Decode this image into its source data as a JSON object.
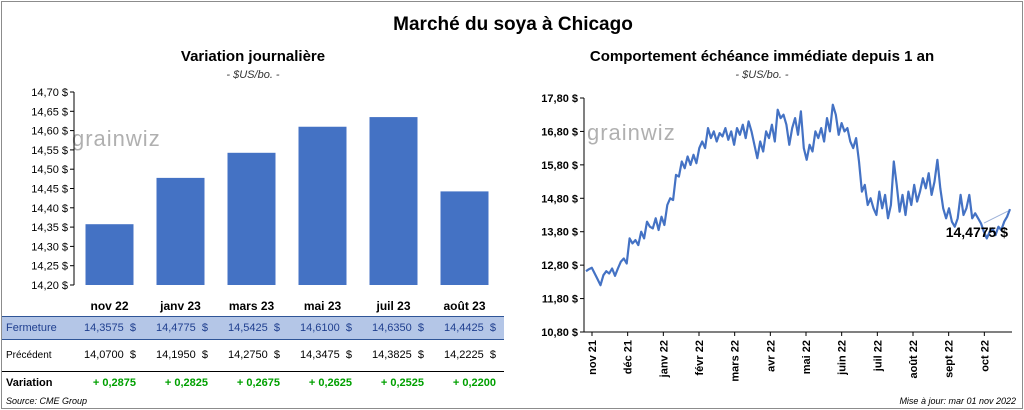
{
  "header": {
    "title": "Marché du soya à Chicago"
  },
  "left_panel": {
    "title": "Variation journalière",
    "unit": "- $US/bo. -",
    "watermark": "grainwiz"
  },
  "right_panel": {
    "title": "Comportement échéance immédiate depuis 1 an",
    "unit": "- $US/bo. -",
    "watermark": "grainwiz",
    "last_value_label": "14,4775 $"
  },
  "table": {
    "rows": [
      {
        "label": "Fermeture",
        "cells": [
          "14,3575  $",
          "14,4775  $",
          "14,5425  $",
          "14,6100  $",
          "14,6350  $",
          "14,4425  $"
        ]
      },
      {
        "label": "Précédent",
        "cells": [
          "14,0700  $",
          "14,1950  $",
          "14,2750  $",
          "14,3475  $",
          "14,3825  $",
          "14,2225  $"
        ]
      },
      {
        "label": "Variation",
        "cells": [
          "+ 0,2875",
          "+ 0,2825",
          "+ 0,2675",
          "+ 0,2625",
          "+ 0,2525",
          "+ 0,2200"
        ]
      }
    ]
  },
  "footer": {
    "source": "Source: CME Group",
    "updated": "Mise à jour: mar 01 nov 2022"
  },
  "chart_data": [
    {
      "type": "bar",
      "title": "Variation journalière",
      "subtitle": "- $US/bo. -",
      "categories": [
        "nov 22",
        "janv 23",
        "mars 23",
        "mai 23",
        "juil 23",
        "août 23"
      ],
      "values": [
        14.3575,
        14.4775,
        14.5425,
        14.61,
        14.635,
        14.4425
      ],
      "ylim": [
        14.2,
        14.7
      ],
      "yticks": [
        14.2,
        14.25,
        14.3,
        14.35,
        14.4,
        14.45,
        14.5,
        14.55,
        14.6,
        14.65,
        14.7
      ],
      "ytick_labels": [
        "14,20 $",
        "14,25 $",
        "14,30 $",
        "14,35 $",
        "14,40 $",
        "14,45 $",
        "14,50 $",
        "14,55 $",
        "14,60 $",
        "14,65 $",
        "14,70 $"
      ],
      "grid": false,
      "color": "#4472c4"
    },
    {
      "type": "line",
      "title": "Comportement échéance immédiate depuis 1 an",
      "subtitle": "- $US/bo. -",
      "x_ticks": [
        "nov 21",
        "déc 21",
        "janv 22",
        "févr 22",
        "mars 22",
        "avr 22",
        "mai 22",
        "juin 22",
        "juil 22",
        "août 22",
        "sept 22",
        "oct 22"
      ],
      "ylim": [
        10.8,
        17.8
      ],
      "yticks": [
        10.8,
        11.8,
        12.8,
        13.8,
        14.8,
        15.8,
        16.8,
        17.8
      ],
      "ytick_labels": [
        "10,80 $",
        "11,80 $",
        "12,80 $",
        "13,80 $",
        "14,80 $",
        "15,80 $",
        "16,80 $",
        "17,80 $"
      ],
      "grid": false,
      "color": "#4472c4",
      "last_value": 14.4775,
      "values": [
        12.62,
        12.68,
        12.72,
        12.55,
        12.38,
        12.2,
        12.5,
        12.62,
        12.55,
        12.7,
        12.48,
        12.7,
        12.9,
        13.0,
        12.85,
        13.6,
        13.45,
        13.55,
        13.4,
        13.8,
        13.6,
        14.1,
        13.95,
        13.9,
        14.2,
        13.85,
        14.25,
        14.0,
        14.6,
        14.8,
        14.75,
        15.5,
        15.45,
        15.9,
        15.7,
        16.05,
        15.8,
        16.1,
        15.85,
        16.3,
        16.5,
        16.3,
        16.9,
        16.6,
        16.8,
        16.5,
        16.75,
        16.65,
        16.9,
        16.55,
        16.8,
        16.4,
        16.9,
        16.7,
        17.0,
        16.6,
        17.1,
        16.8,
        16.4,
        16.0,
        16.5,
        16.2,
        16.8,
        16.6,
        17.0,
        16.5,
        17.45,
        17.2,
        17.3,
        17.0,
        16.4,
        16.9,
        17.2,
        16.7,
        17.4,
        16.3,
        15.95,
        16.4,
        16.2,
        16.8,
        16.6,
        16.9,
        16.5,
        17.2,
        16.8,
        17.6,
        17.3,
        16.7,
        17.05,
        16.8,
        16.9,
        16.5,
        16.3,
        16.6,
        15.9,
        15.0,
        15.2,
        14.6,
        14.8,
        14.5,
        14.3,
        15.0,
        14.5,
        14.9,
        14.2,
        14.6,
        15.9,
        15.2,
        14.4,
        14.9,
        14.3,
        15.0,
        14.6,
        15.2,
        14.7,
        15.0,
        15.4,
        15.1,
        15.55,
        14.9,
        15.3,
        15.95,
        15.1,
        14.5,
        14.2,
        14.5,
        14.1,
        13.95,
        14.2,
        14.9,
        14.3,
        14.5,
        14.9,
        14.2,
        14.35,
        14.2,
        14.05,
        13.8,
        13.6,
        13.8,
        13.9,
        13.7,
        13.95,
        13.85,
        14.1,
        14.25,
        14.4775
      ]
    }
  ]
}
